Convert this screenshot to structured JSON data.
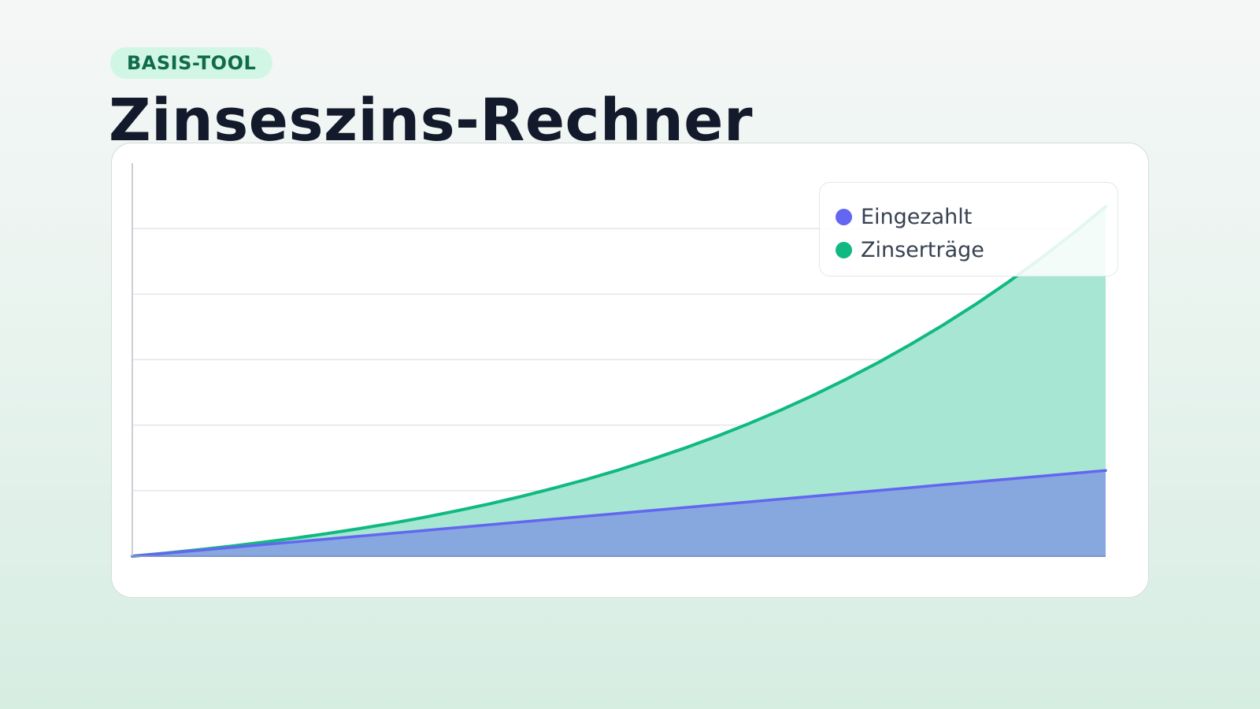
{
  "header": {
    "badge": "BASIS-TOOL",
    "title": "Zinseszins-Rechner"
  },
  "colors": {
    "eingezahlt": "#6366f1",
    "zinsertraege": "#10b981",
    "area_eingezahlt": "#87a7df",
    "area_zinsertraege": "#a7e6d2"
  },
  "chart_data": {
    "type": "area",
    "stacked": true,
    "x": [
      0,
      1,
      2,
      3,
      4,
      5,
      6,
      7,
      8,
      9,
      10,
      11,
      12,
      13,
      14,
      15,
      16,
      17,
      18,
      19,
      20,
      21,
      22,
      23,
      24,
      25,
      26,
      27,
      28,
      29,
      30
    ],
    "series": [
      {
        "name": "Eingezahlt",
        "values": [
          0,
          5.7,
          11.3,
          17,
          22.7,
          28.3,
          34,
          39.7,
          45.3,
          51,
          56.7,
          62.3,
          68,
          73.7,
          79.3,
          85,
          90.7,
          96.3,
          102,
          107.7,
          113.3,
          119,
          124.7,
          130.3,
          136,
          141.7,
          147.3,
          153,
          158.7,
          164.3,
          170
        ]
      },
      {
        "name": "Zinserträge",
        "values": [
          0,
          0.3,
          1.2,
          2.6,
          4.6,
          7.3,
          10.8,
          15.0,
          20.1,
          26.1,
          33.3,
          41.4,
          50.7,
          61.3,
          73.1,
          86.3,
          101.2,
          117.6,
          135.5,
          155.2,
          177.0,
          200.5,
          226.3,
          254.2,
          284.6,
          317.4,
          352.8,
          391.0,
          432.2,
          476.3,
          523.5
        ]
      }
    ],
    "ylim": [
      0,
      780
    ],
    "grid": true,
    "legend_position": "top-right",
    "xlabel": "",
    "ylabel": ""
  }
}
